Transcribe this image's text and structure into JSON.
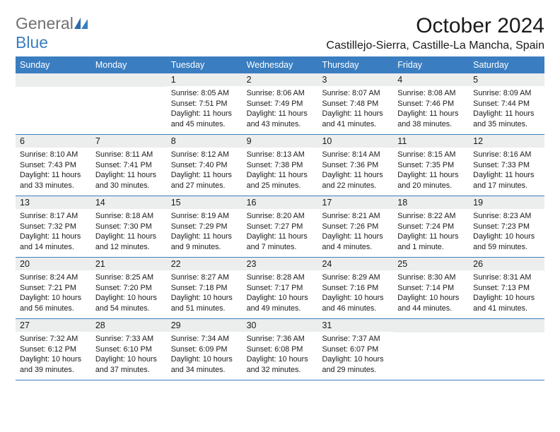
{
  "logo": {
    "text1": "General",
    "text2": "Blue"
  },
  "colors": {
    "header_bg": "#3a7ec1",
    "header_text": "#ffffff",
    "daynum_bg": "#eceded",
    "border": "#3a7ec1",
    "body_text": "#1a1a1a",
    "logo_gray": "#707070",
    "logo_blue": "#3a7ec1"
  },
  "title": "October 2024",
  "location": "Castillejo-Sierra, Castille-La Mancha, Spain",
  "daynames": [
    "Sunday",
    "Monday",
    "Tuesday",
    "Wednesday",
    "Thursday",
    "Friday",
    "Saturday"
  ],
  "weeks": [
    [
      {
        "num": "",
        "lines": []
      },
      {
        "num": "",
        "lines": []
      },
      {
        "num": "1",
        "lines": [
          "Sunrise: 8:05 AM",
          "Sunset: 7:51 PM",
          "Daylight: 11 hours",
          "and 45 minutes."
        ]
      },
      {
        "num": "2",
        "lines": [
          "Sunrise: 8:06 AM",
          "Sunset: 7:49 PM",
          "Daylight: 11 hours",
          "and 43 minutes."
        ]
      },
      {
        "num": "3",
        "lines": [
          "Sunrise: 8:07 AM",
          "Sunset: 7:48 PM",
          "Daylight: 11 hours",
          "and 41 minutes."
        ]
      },
      {
        "num": "4",
        "lines": [
          "Sunrise: 8:08 AM",
          "Sunset: 7:46 PM",
          "Daylight: 11 hours",
          "and 38 minutes."
        ]
      },
      {
        "num": "5",
        "lines": [
          "Sunrise: 8:09 AM",
          "Sunset: 7:44 PM",
          "Daylight: 11 hours",
          "and 35 minutes."
        ]
      }
    ],
    [
      {
        "num": "6",
        "lines": [
          "Sunrise: 8:10 AM",
          "Sunset: 7:43 PM",
          "Daylight: 11 hours",
          "and 33 minutes."
        ]
      },
      {
        "num": "7",
        "lines": [
          "Sunrise: 8:11 AM",
          "Sunset: 7:41 PM",
          "Daylight: 11 hours",
          "and 30 minutes."
        ]
      },
      {
        "num": "8",
        "lines": [
          "Sunrise: 8:12 AM",
          "Sunset: 7:40 PM",
          "Daylight: 11 hours",
          "and 27 minutes."
        ]
      },
      {
        "num": "9",
        "lines": [
          "Sunrise: 8:13 AM",
          "Sunset: 7:38 PM",
          "Daylight: 11 hours",
          "and 25 minutes."
        ]
      },
      {
        "num": "10",
        "lines": [
          "Sunrise: 8:14 AM",
          "Sunset: 7:36 PM",
          "Daylight: 11 hours",
          "and 22 minutes."
        ]
      },
      {
        "num": "11",
        "lines": [
          "Sunrise: 8:15 AM",
          "Sunset: 7:35 PM",
          "Daylight: 11 hours",
          "and 20 minutes."
        ]
      },
      {
        "num": "12",
        "lines": [
          "Sunrise: 8:16 AM",
          "Sunset: 7:33 PM",
          "Daylight: 11 hours",
          "and 17 minutes."
        ]
      }
    ],
    [
      {
        "num": "13",
        "lines": [
          "Sunrise: 8:17 AM",
          "Sunset: 7:32 PM",
          "Daylight: 11 hours",
          "and 14 minutes."
        ]
      },
      {
        "num": "14",
        "lines": [
          "Sunrise: 8:18 AM",
          "Sunset: 7:30 PM",
          "Daylight: 11 hours",
          "and 12 minutes."
        ]
      },
      {
        "num": "15",
        "lines": [
          "Sunrise: 8:19 AM",
          "Sunset: 7:29 PM",
          "Daylight: 11 hours",
          "and 9 minutes."
        ]
      },
      {
        "num": "16",
        "lines": [
          "Sunrise: 8:20 AM",
          "Sunset: 7:27 PM",
          "Daylight: 11 hours",
          "and 7 minutes."
        ]
      },
      {
        "num": "17",
        "lines": [
          "Sunrise: 8:21 AM",
          "Sunset: 7:26 PM",
          "Daylight: 11 hours",
          "and 4 minutes."
        ]
      },
      {
        "num": "18",
        "lines": [
          "Sunrise: 8:22 AM",
          "Sunset: 7:24 PM",
          "Daylight: 11 hours",
          "and 1 minute."
        ]
      },
      {
        "num": "19",
        "lines": [
          "Sunrise: 8:23 AM",
          "Sunset: 7:23 PM",
          "Daylight: 10 hours",
          "and 59 minutes."
        ]
      }
    ],
    [
      {
        "num": "20",
        "lines": [
          "Sunrise: 8:24 AM",
          "Sunset: 7:21 PM",
          "Daylight: 10 hours",
          "and 56 minutes."
        ]
      },
      {
        "num": "21",
        "lines": [
          "Sunrise: 8:25 AM",
          "Sunset: 7:20 PM",
          "Daylight: 10 hours",
          "and 54 minutes."
        ]
      },
      {
        "num": "22",
        "lines": [
          "Sunrise: 8:27 AM",
          "Sunset: 7:18 PM",
          "Daylight: 10 hours",
          "and 51 minutes."
        ]
      },
      {
        "num": "23",
        "lines": [
          "Sunrise: 8:28 AM",
          "Sunset: 7:17 PM",
          "Daylight: 10 hours",
          "and 49 minutes."
        ]
      },
      {
        "num": "24",
        "lines": [
          "Sunrise: 8:29 AM",
          "Sunset: 7:16 PM",
          "Daylight: 10 hours",
          "and 46 minutes."
        ]
      },
      {
        "num": "25",
        "lines": [
          "Sunrise: 8:30 AM",
          "Sunset: 7:14 PM",
          "Daylight: 10 hours",
          "and 44 minutes."
        ]
      },
      {
        "num": "26",
        "lines": [
          "Sunrise: 8:31 AM",
          "Sunset: 7:13 PM",
          "Daylight: 10 hours",
          "and 41 minutes."
        ]
      }
    ],
    [
      {
        "num": "27",
        "lines": [
          "Sunrise: 7:32 AM",
          "Sunset: 6:12 PM",
          "Daylight: 10 hours",
          "and 39 minutes."
        ]
      },
      {
        "num": "28",
        "lines": [
          "Sunrise: 7:33 AM",
          "Sunset: 6:10 PM",
          "Daylight: 10 hours",
          "and 37 minutes."
        ]
      },
      {
        "num": "29",
        "lines": [
          "Sunrise: 7:34 AM",
          "Sunset: 6:09 PM",
          "Daylight: 10 hours",
          "and 34 minutes."
        ]
      },
      {
        "num": "30",
        "lines": [
          "Sunrise: 7:36 AM",
          "Sunset: 6:08 PM",
          "Daylight: 10 hours",
          "and 32 minutes."
        ]
      },
      {
        "num": "31",
        "lines": [
          "Sunrise: 7:37 AM",
          "Sunset: 6:07 PM",
          "Daylight: 10 hours",
          "and 29 minutes."
        ]
      },
      {
        "num": "",
        "lines": []
      },
      {
        "num": "",
        "lines": []
      }
    ]
  ]
}
